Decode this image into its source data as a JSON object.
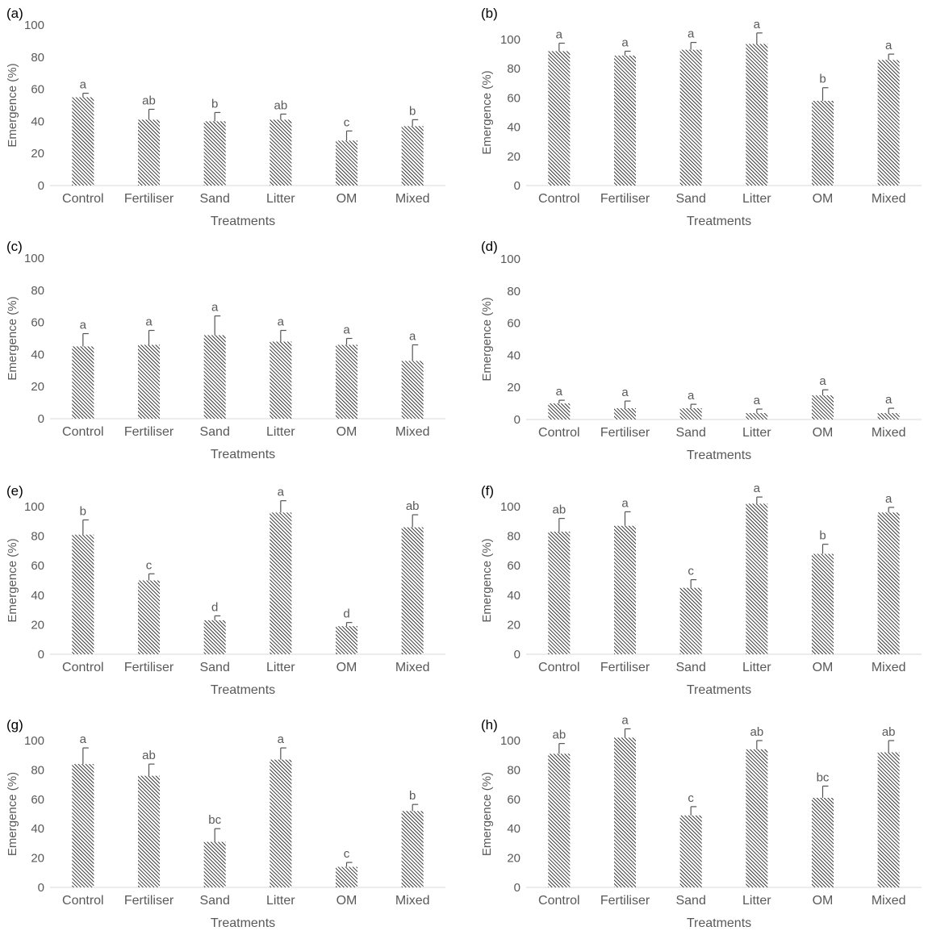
{
  "figure": {
    "colors": {
      "bar_fill": "#ffffff",
      "hatch": "#1a1a1a",
      "axis": "#d9d9d9",
      "text": "#595959",
      "error_bar": "#555555"
    }
  },
  "chart_data": [
    {
      "panel": "(a)",
      "type": "bar",
      "categories": [
        "Control",
        "Fertiliser",
        "Sand",
        "Litter",
        "OM",
        "Mixed"
      ],
      "values": [
        55,
        41,
        40,
        41,
        28,
        37
      ],
      "errors": [
        2.5,
        6.5,
        5.5,
        3.5,
        6,
        4
      ],
      "significance": [
        "a",
        "ab",
        "b",
        "ab",
        "c",
        "b"
      ],
      "xlabel": "Treatments",
      "ylabel": "Emergence (%)",
      "ylim": [
        0,
        100
      ],
      "yticks": [
        0,
        20,
        40,
        60,
        80,
        100
      ],
      "grid": false
    },
    {
      "panel": "(b)",
      "type": "bar",
      "categories": [
        "Control",
        "Fertiliser",
        "Sand",
        "Litter",
        "OM",
        "Mixed"
      ],
      "values": [
        92,
        89,
        93,
        97,
        58,
        86
      ],
      "errors": [
        5.5,
        3,
        5,
        7.5,
        9,
        4
      ],
      "significance": [
        "a",
        "a",
        "a",
        "a",
        "b",
        "a"
      ],
      "xlabel": "Treatments",
      "ylabel": "Emergence (%)",
      "ylim": [
        0,
        110
      ],
      "yticks": [
        0,
        20,
        40,
        60,
        80,
        100
      ],
      "grid": false
    },
    {
      "panel": "(c)",
      "type": "bar",
      "categories": [
        "Control",
        "Fertiliser",
        "Sand",
        "Litter",
        "OM",
        "Mixed"
      ],
      "values": [
        45,
        46,
        52,
        48,
        46,
        36
      ],
      "errors": [
        8,
        9,
        12,
        7,
        4,
        10
      ],
      "significance": [
        "a",
        "a",
        "a",
        "a",
        "a",
        "a"
      ],
      "xlabel": "Treatments",
      "ylabel": "Emergence (%)",
      "ylim": [
        0,
        100
      ],
      "yticks": [
        0,
        20,
        40,
        60,
        80,
        100
      ],
      "grid": false
    },
    {
      "panel": "(d)",
      "type": "bar",
      "categories": [
        "Control",
        "Fertiliser",
        "Sand",
        "Litter",
        "OM",
        "Mixed"
      ],
      "values": [
        10,
        7,
        7,
        4,
        15,
        4
      ],
      "errors": [
        2,
        4.5,
        2.5,
        2.5,
        3.5,
        3
      ],
      "significance": [
        "a",
        "a",
        "a",
        "a",
        "a",
        "a"
      ],
      "xlabel": "Treatments",
      "ylabel": "Emergence (%)",
      "ylim": [
        0,
        100
      ],
      "yticks": [
        0,
        20,
        40,
        60,
        80,
        100
      ],
      "grid": false
    },
    {
      "panel": "(e)",
      "type": "bar",
      "categories": [
        "Control",
        "Fertiliser",
        "Sand",
        "Litter",
        "OM",
        "Mixed"
      ],
      "values": [
        81,
        50,
        23,
        96,
        19,
        86
      ],
      "errors": [
        10,
        4.5,
        3,
        8,
        2.5,
        8.5
      ],
      "significance": [
        "b",
        "c",
        "d",
        "a",
        "d",
        "ab"
      ],
      "xlabel": "Treatments",
      "ylabel": "Emergence (%)",
      "ylim": [
        0,
        110
      ],
      "yticks": [
        0,
        20,
        40,
        60,
        80,
        100
      ],
      "grid": false
    },
    {
      "panel": "(f)",
      "type": "bar",
      "categories": [
        "Control",
        "Fertiliser",
        "Sand",
        "Litter",
        "OM",
        "Mixed"
      ],
      "values": [
        83,
        87,
        45,
        102,
        68,
        96
      ],
      "errors": [
        9,
        9.5,
        5.5,
        4.5,
        6.5,
        3.5
      ],
      "significance": [
        "ab",
        "a",
        "c",
        "a",
        "b",
        "a"
      ],
      "xlabel": "Treatments",
      "ylabel": "Emergence (%)",
      "ylim": [
        0,
        110
      ],
      "yticks": [
        0,
        20,
        40,
        60,
        80,
        100
      ],
      "grid": false
    },
    {
      "panel": "(g)",
      "type": "bar",
      "categories": [
        "Control",
        "Fertiliser",
        "Sand",
        "Litter",
        "OM",
        "Mixed"
      ],
      "values": [
        84,
        76,
        31,
        87,
        14,
        52
      ],
      "errors": [
        11,
        8,
        9,
        8,
        3,
        4.5
      ],
      "significance": [
        "a",
        "ab",
        "bc",
        "a",
        "c",
        "b"
      ],
      "xlabel": "Treatments",
      "ylabel": "Emergence (%)",
      "ylim": [
        0,
        110
      ],
      "yticks": [
        0,
        20,
        40,
        60,
        80,
        100
      ],
      "grid": false
    },
    {
      "panel": "(h)",
      "type": "bar",
      "categories": [
        "Control",
        "Fertiliser",
        "Sand",
        "Litter",
        "OM",
        "Mixed"
      ],
      "values": [
        91,
        102,
        49,
        94,
        61,
        92
      ],
      "errors": [
        7,
        6,
        6,
        6,
        8,
        8
      ],
      "significance": [
        "ab",
        "a",
        "c",
        "ab",
        "bc",
        "ab"
      ],
      "xlabel": "Treatments",
      "ylabel": "Emergence (%)",
      "ylim": [
        0,
        110
      ],
      "yticks": [
        0,
        20,
        40,
        60,
        80,
        100
      ],
      "grid": false
    }
  ]
}
